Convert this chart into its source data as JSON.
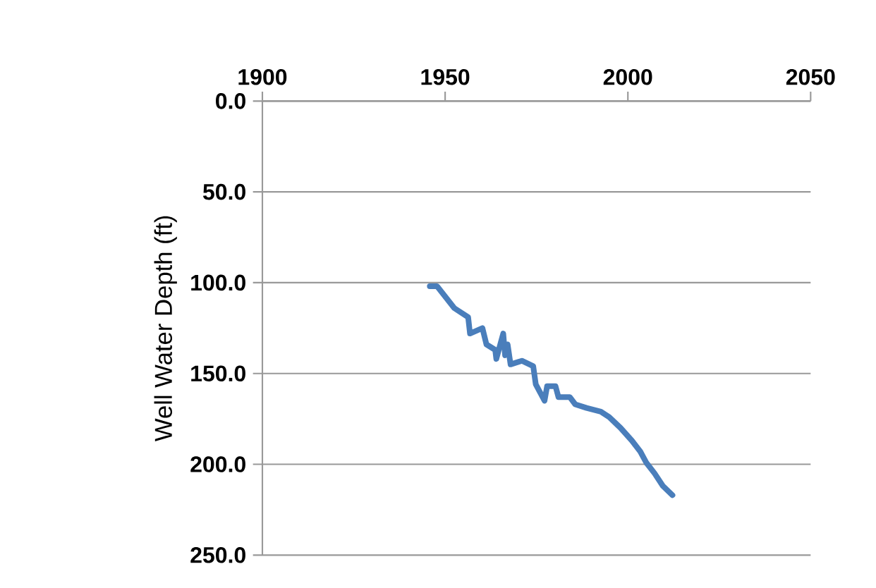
{
  "chart_data": {
    "type": "line",
    "ylabel": "Well Water Depth (ft)",
    "x": [
      1945.8,
      1947.8,
      1952.5,
      1956.3,
      1956.8,
      1960.2,
      1961.3,
      1963.7,
      1964.0,
      1965.9,
      1966.4,
      1967.1,
      1967.9,
      1971.0,
      1974.1,
      1974.8,
      1977.2,
      1977.9,
      1980.2,
      1981.0,
      1984.1,
      1985.6,
      1988.7,
      1992.6,
      1994.9,
      1998.0,
      2001.1,
      2003.4,
      2005.0,
      2007.3,
      2009.6,
      2012.2
    ],
    "values": [
      102,
      102,
      114,
      119,
      128,
      125,
      134,
      137,
      142,
      128,
      140,
      134,
      145,
      143,
      146,
      156,
      165,
      157,
      157,
      163,
      163,
      167,
      169,
      171,
      174,
      180,
      187,
      193,
      199,
      205,
      212,
      217
    ],
    "color": "#4a7ebb",
    "xlim": [
      1900,
      2050
    ],
    "xticks": [
      1900,
      1950,
      2000,
      2050
    ],
    "ylim": [
      250,
      0
    ],
    "yticks": [
      {
        "value": 0,
        "label": "0.0"
      },
      {
        "value": 50,
        "label": "50.0"
      },
      {
        "value": 100,
        "label": "100.0"
      },
      {
        "value": 150,
        "label": "150.0"
      },
      {
        "value": 200,
        "label": "200.0"
      },
      {
        "value": 250,
        "label": "250.0"
      }
    ],
    "grid": "y",
    "marker": "none",
    "line_style": "solid"
  }
}
